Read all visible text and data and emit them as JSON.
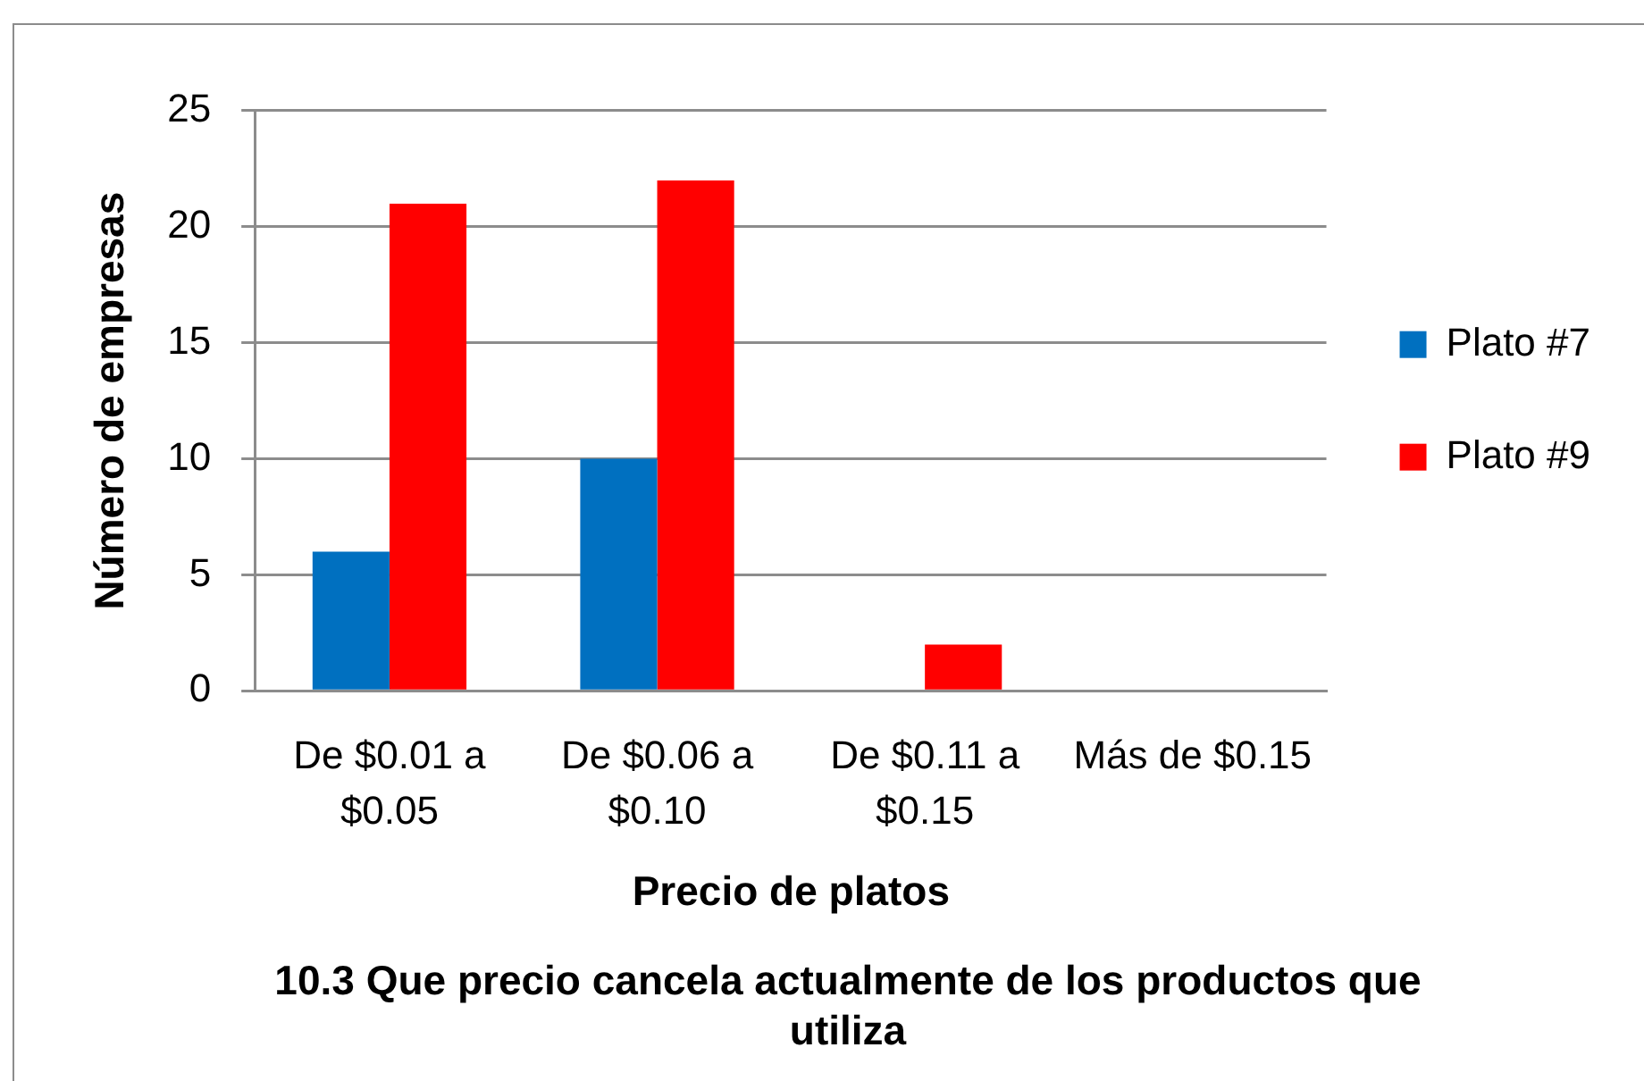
{
  "chart_data": {
    "type": "bar",
    "title": "10.3 Que precio cancela actualmente de los productos que utiliza",
    "xlabel": "Precio de platos",
    "ylabel": "Número de empresas",
    "categories": [
      "De $0.01 a $0.05",
      "De $0.06 a $0.10",
      "De $0.11 a $0.15",
      "Más de $0.15"
    ],
    "series": [
      {
        "name": "Plato #7",
        "color": "#0070c0",
        "values": [
          6,
          10,
          0,
          0
        ]
      },
      {
        "name": "Plato #9",
        "color": "#ff0000",
        "values": [
          21,
          22,
          2,
          0
        ]
      }
    ],
    "ylim": [
      0,
      25
    ],
    "yticks": [
      0,
      5,
      10,
      15,
      20,
      25
    ],
    "grid": "y",
    "legend": "right"
  }
}
